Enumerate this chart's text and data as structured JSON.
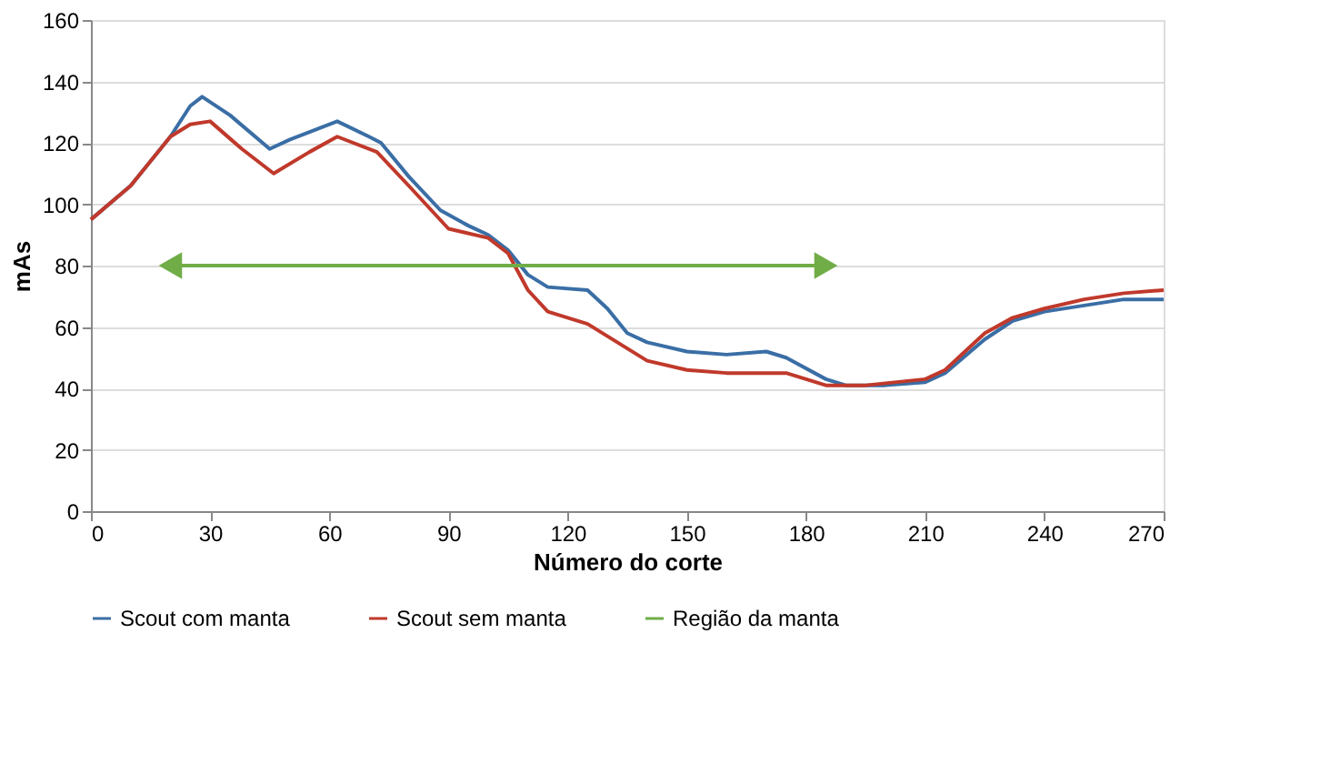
{
  "chart_data": {
    "type": "line",
    "xlabel": "Número do corte",
    "ylabel": "mAs",
    "xlim": [
      0,
      270
    ],
    "xticks": [
      0,
      30,
      60,
      90,
      120,
      150,
      180,
      210,
      240,
      270
    ],
    "ylim": [
      0,
      160
    ],
    "yticks": [
      0,
      20,
      40,
      60,
      80,
      100,
      120,
      140,
      160
    ],
    "grid": "y",
    "legend": "bottom",
    "line_style": "solid",
    "marker": "none",
    "series": [
      {
        "name": "Scout com manta",
        "color": "#3a6ea5",
        "x": [
          0,
          10,
          20,
          25,
          28,
          35,
          45,
          50,
          62,
          70,
          73,
          80,
          88,
          95,
          100,
          105,
          110,
          115,
          125,
          130,
          135,
          140,
          150,
          160,
          170,
          175,
          185,
          190,
          200,
          210,
          215,
          225,
          232,
          240,
          250,
          260,
          270
        ],
        "values": [
          95,
          106,
          122,
          132,
          135,
          129,
          118,
          121,
          127,
          122,
          120,
          109,
          98,
          93,
          90,
          85,
          77,
          73,
          72,
          66,
          58,
          55,
          52,
          51,
          52,
          50,
          43,
          41,
          41,
          42,
          45,
          56,
          62,
          65,
          67,
          69,
          69
        ]
      },
      {
        "name": "Scout sem manta",
        "color": "#c0392b",
        "x": [
          0,
          10,
          20,
          25,
          30,
          38,
          46,
          55,
          62,
          72,
          80,
          90,
          100,
          105,
          110,
          115,
          125,
          135,
          140,
          150,
          160,
          175,
          185,
          195,
          210,
          215,
          225,
          232,
          240,
          250,
          260,
          270
        ],
        "values": [
          95,
          106,
          122,
          126,
          127,
          118,
          110,
          117,
          122,
          117,
          106,
          92,
          89,
          84,
          72,
          65,
          61,
          53,
          49,
          46,
          45,
          45,
          41,
          41,
          43,
          46,
          58,
          63,
          66,
          69,
          71,
          72
        ]
      },
      {
        "name": "Região da manta",
        "color": "#70ad47",
        "marker": "triangle",
        "x": [
          20,
          185
        ],
        "values": [
          80,
          80
        ]
      }
    ]
  }
}
